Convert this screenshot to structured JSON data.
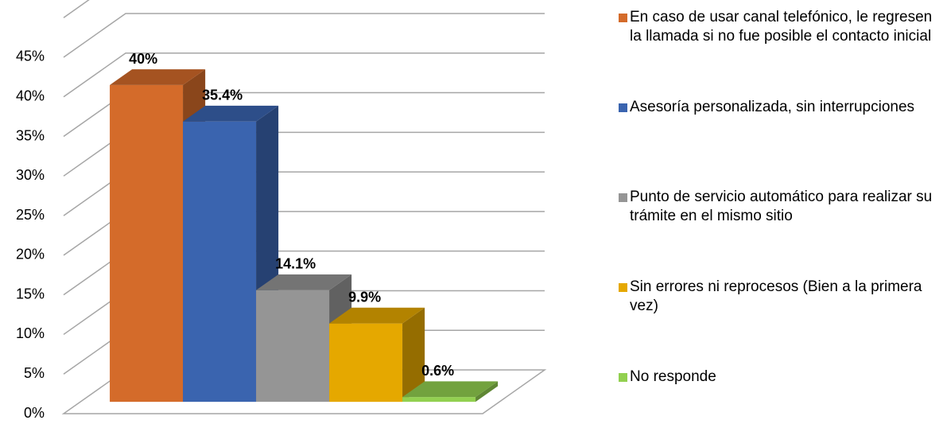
{
  "chart_data": {
    "type": "bar",
    "series": [
      {
        "name": "En caso de usar canal telefónico, le regresen la llamada si no fue posible el contacto inicial",
        "color": "#d46b2a",
        "values": [
          40
        ],
        "value_labels": [
          "40%"
        ]
      },
      {
        "name": "Asesoría personalizada, sin interrupciones",
        "color": "#3a64af",
        "values": [
          35.4
        ],
        "value_labels": [
          "35.4%"
        ]
      },
      {
        "name": "Punto de servicio automático para realizar su trámite en el mismo sitio",
        "color": "#959595",
        "values": [
          14.1
        ],
        "value_labels": [
          "14.1%"
        ]
      },
      {
        "name": "Sin errores ni reprocesos (Bien a la primera vez)",
        "color": "#e5a800",
        "values": [
          9.9
        ],
        "value_labels": [
          "9.9%"
        ]
      },
      {
        "name": "No responde",
        "color": "#92d050",
        "values": [
          0.6
        ],
        "value_labels": [
          "0.6%"
        ]
      }
    ],
    "ylim": [
      0,
      50
    ],
    "yticks": [
      {
        "value": 0,
        "label": "0%"
      },
      {
        "value": 5,
        "label": "5%"
      },
      {
        "value": 10,
        "label": "10%"
      },
      {
        "value": 15,
        "label": "15%"
      },
      {
        "value": 20,
        "label": "20%"
      },
      {
        "value": 25,
        "label": "25%"
      },
      {
        "value": 30,
        "label": "30%"
      },
      {
        "value": 35,
        "label": "35%"
      },
      {
        "value": 40,
        "label": "40%"
      },
      {
        "value": 45,
        "label": "45%"
      }
    ],
    "grid": true,
    "legend": "right"
  }
}
